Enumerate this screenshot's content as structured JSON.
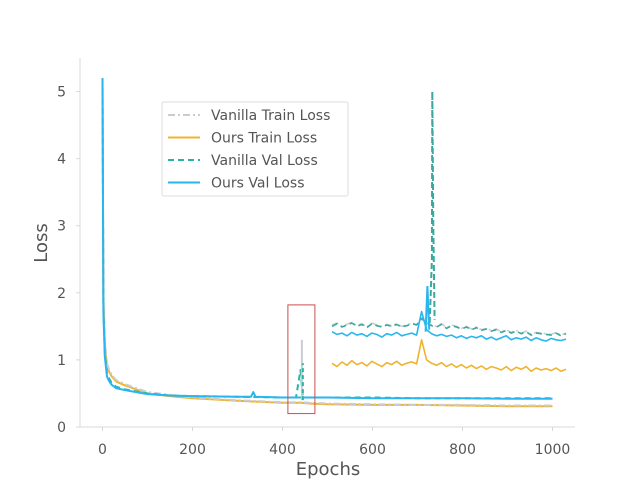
{
  "chart_data": {
    "type": "line",
    "title": "",
    "xlabel": "Epochs",
    "ylabel": "Loss",
    "xlim": [
      -50,
      1050
    ],
    "ylim": [
      0,
      5.5
    ],
    "xticks": [
      0,
      200,
      400,
      600,
      800,
      1000
    ],
    "yticks": [
      0,
      1,
      2,
      3,
      4,
      5
    ],
    "grid": false,
    "legend_position": "upper-left",
    "series": [
      {
        "name": "Vanilla Train Loss",
        "color": "#c8cdd2",
        "style": "dashdot",
        "x": [
          0,
          2,
          5,
          10,
          15,
          20,
          30,
          50,
          100,
          150,
          200,
          300,
          400,
          420,
          440,
          460,
          500,
          600,
          700,
          800,
          900,
          1000
        ],
        "y": [
          5.2,
          2.0,
          1.3,
          0.95,
          0.85,
          0.78,
          0.7,
          0.64,
          0.52,
          0.48,
          0.44,
          0.4,
          0.37,
          0.37,
          0.37,
          0.36,
          0.35,
          0.34,
          0.33,
          0.33,
          0.32,
          0.32
        ]
      },
      {
        "name": "Ours Train Loss",
        "color": "#f0b330",
        "style": "solid",
        "x": [
          0,
          2,
          5,
          10,
          15,
          20,
          30,
          50,
          100,
          150,
          200,
          300,
          400,
          420,
          440,
          460,
          500,
          600,
          700,
          800,
          900,
          1000
        ],
        "y": [
          5.1,
          1.9,
          1.25,
          0.9,
          0.82,
          0.76,
          0.68,
          0.62,
          0.5,
          0.46,
          0.43,
          0.39,
          0.36,
          0.36,
          0.36,
          0.35,
          0.34,
          0.33,
          0.33,
          0.32,
          0.31,
          0.31
        ]
      },
      {
        "name": "Vanilla Val Loss",
        "color": "#2ab3a3",
        "style": "dashed",
        "x": [
          0,
          2,
          5,
          10,
          15,
          20,
          30,
          50,
          100,
          150,
          200,
          300,
          400,
          430,
          440,
          445,
          450,
          500,
          600,
          700,
          800,
          900,
          1000
        ],
        "y": [
          5.2,
          1.8,
          1.1,
          0.8,
          0.72,
          0.66,
          0.6,
          0.56,
          0.5,
          0.47,
          0.46,
          0.45,
          0.44,
          0.44,
          0.85,
          0.44,
          0.44,
          0.44,
          0.44,
          0.43,
          0.43,
          0.43,
          0.43
        ]
      },
      {
        "name": "Ours Val Loss",
        "color": "#29b6f0",
        "style": "solid",
        "x": [
          0,
          2,
          5,
          10,
          15,
          20,
          30,
          50,
          100,
          150,
          200,
          300,
          330,
          335,
          340,
          400,
          440,
          450,
          500,
          600,
          700,
          800,
          900,
          1000
        ],
        "y": [
          5.2,
          1.7,
          1.05,
          0.75,
          0.68,
          0.63,
          0.58,
          0.55,
          0.49,
          0.47,
          0.46,
          0.45,
          0.45,
          0.52,
          0.45,
          0.44,
          0.44,
          0.44,
          0.44,
          0.43,
          0.43,
          0.43,
          0.42,
          0.42
        ]
      }
    ],
    "highlight_box": {
      "x_range": [
        412,
        472
      ],
      "y_range": [
        0.2,
        1.82
      ],
      "color": "#c8504f"
    },
    "inset": {
      "x_range": [
        510,
        1030
      ],
      "series": [
        {
          "name": "Vanilla Train Loss",
          "color": "#c8cdd2",
          "style": "dashdot",
          "band": "upper",
          "values": [
            1.52,
            1.55,
            1.5,
            1.53,
            1.56,
            1.51,
            1.54,
            1.49,
            1.55,
            1.52,
            1.5,
            1.53,
            1.51,
            1.54,
            1.5,
            1.52,
            1.55,
            1.53,
            1.6,
            1.56,
            1.52,
            1.5,
            1.54,
            1.48,
            1.52,
            1.5,
            1.47,
            1.5,
            1.46,
            1.49,
            1.45,
            1.47,
            1.44,
            1.46,
            1.42,
            1.45,
            1.41,
            1.44,
            1.4,
            1.43,
            1.38,
            1.41,
            1.4,
            1.39,
            1.38,
            1.41,
            1.37,
            1.4
          ]
        },
        {
          "name": "Vanilla Val Loss",
          "color": "#3aa89c",
          "style": "dashed",
          "band": "upper",
          "values": [
            1.5,
            1.54,
            1.49,
            1.52,
            1.55,
            1.5,
            1.53,
            1.48,
            1.54,
            1.51,
            1.49,
            1.52,
            1.5,
            1.53,
            1.49,
            1.51,
            1.54,
            1.52,
            1.62,
            1.55,
            1.51,
            1.49,
            1.53,
            1.47,
            1.51,
            1.49,
            1.46,
            1.49,
            1.45,
            1.48,
            1.44,
            1.46,
            1.43,
            1.45,
            1.41,
            1.44,
            1.4,
            1.43,
            1.39,
            1.42,
            1.37,
            1.4,
            1.39,
            1.38,
            1.37,
            1.4,
            1.36,
            1.39
          ]
        },
        {
          "name": "Ours Val Loss",
          "color": "#29b6f0",
          "style": "solid",
          "band": "lower",
          "values": [
            1.42,
            1.38,
            1.4,
            1.36,
            1.41,
            1.37,
            1.39,
            1.35,
            1.4,
            1.38,
            1.34,
            1.39,
            1.37,
            1.41,
            1.36,
            1.38,
            1.4,
            1.37,
            1.72,
            1.45,
            1.39,
            1.36,
            1.38,
            1.35,
            1.37,
            1.33,
            1.36,
            1.32,
            1.35,
            1.33,
            1.36,
            1.31,
            1.34,
            1.3,
            1.33,
            1.36,
            1.3,
            1.33,
            1.31,
            1.34,
            1.29,
            1.33,
            1.3,
            1.28,
            1.32,
            1.3,
            1.29,
            1.31
          ]
        },
        {
          "name": "Ours Train Loss",
          "color": "#f0b330",
          "style": "solid",
          "band": "bottom",
          "values": [
            0.95,
            0.9,
            0.97,
            0.92,
            0.99,
            0.93,
            0.96,
            0.91,
            0.98,
            0.94,
            0.9,
            0.96,
            0.93,
            0.98,
            0.92,
            0.95,
            0.97,
            0.94,
            1.3,
            1.0,
            0.95,
            0.92,
            0.96,
            0.9,
            0.94,
            0.89,
            0.93,
            0.88,
            0.92,
            0.87,
            0.91,
            0.86,
            0.9,
            0.88,
            0.85,
            0.9,
            0.84,
            0.89,
            0.86,
            0.9,
            0.83,
            0.88,
            0.85,
            0.87,
            0.84,
            0.88,
            0.83,
            0.86
          ]
        }
      ],
      "spike": {
        "x": 733,
        "upper_y_top": 5.0,
        "upper_color": "#3aa89c",
        "lower_x": 722,
        "lower_y_top": 2.1,
        "lower_color": "#29b6f0"
      }
    },
    "spike_400": {
      "x": 443,
      "y_top": 1.3,
      "color": "#c8cdd2"
    }
  }
}
